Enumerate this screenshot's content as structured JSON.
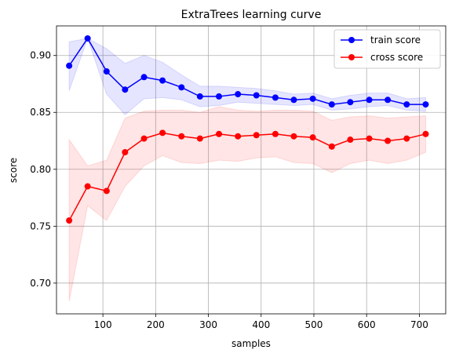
{
  "chart_data": {
    "type": "line",
    "title": "ExtraTrees learning curve",
    "xlabel": "samples",
    "ylabel": "score",
    "xlim": [
      12,
      750
    ],
    "ylim": [
      0.673,
      0.926
    ],
    "xticks": [
      100,
      200,
      300,
      400,
      500,
      600,
      700
    ],
    "yticks": [
      0.7,
      0.75,
      0.8,
      0.85,
      0.9
    ],
    "xtick_labels": [
      "100",
      "200",
      "300",
      "400",
      "500",
      "600",
      "700"
    ],
    "ytick_labels": [
      "0.70",
      "0.75",
      "0.80",
      "0.85",
      "0.90"
    ],
    "grid": true,
    "legend_position": "top-right",
    "x": [
      36,
      71,
      107,
      142,
      178,
      213,
      249,
      284,
      320,
      356,
      391,
      427,
      462,
      498,
      534,
      569,
      605,
      640,
      676,
      712
    ],
    "series": [
      {
        "name": "train score",
        "color": "#0000ff",
        "band_color": "#0000ff",
        "values": [
          0.891,
          0.915,
          0.886,
          0.87,
          0.881,
          0.878,
          0.872,
          0.864,
          0.864,
          0.866,
          0.865,
          0.863,
          0.861,
          0.862,
          0.857,
          0.859,
          0.861,
          0.861,
          0.857,
          0.857
        ],
        "lower": [
          0.869,
          0.915,
          0.866,
          0.848,
          0.862,
          0.863,
          0.861,
          0.855,
          0.856,
          0.859,
          0.858,
          0.857,
          0.856,
          0.857,
          0.852,
          0.853,
          0.855,
          0.856,
          0.852,
          0.851
        ],
        "upper": [
          0.912,
          0.915,
          0.906,
          0.893,
          0.9,
          0.894,
          0.883,
          0.873,
          0.873,
          0.872,
          0.871,
          0.869,
          0.866,
          0.867,
          0.862,
          0.865,
          0.867,
          0.867,
          0.862,
          0.863
        ]
      },
      {
        "name": "cross score",
        "color": "#ff0000",
        "band_color": "#ff0000",
        "values": [
          0.755,
          0.785,
          0.781,
          0.815,
          0.827,
          0.832,
          0.829,
          0.827,
          0.831,
          0.829,
          0.83,
          0.831,
          0.829,
          0.828,
          0.82,
          0.826,
          0.827,
          0.825,
          0.827,
          0.831
        ],
        "lower": [
          0.684,
          0.768,
          0.755,
          0.785,
          0.803,
          0.812,
          0.806,
          0.805,
          0.808,
          0.807,
          0.81,
          0.811,
          0.806,
          0.805,
          0.797,
          0.805,
          0.808,
          0.805,
          0.808,
          0.815
        ],
        "upper": [
          0.826,
          0.803,
          0.808,
          0.845,
          0.851,
          0.852,
          0.852,
          0.85,
          0.855,
          0.852,
          0.851,
          0.852,
          0.852,
          0.851,
          0.843,
          0.846,
          0.847,
          0.845,
          0.846,
          0.847
        ]
      }
    ]
  }
}
